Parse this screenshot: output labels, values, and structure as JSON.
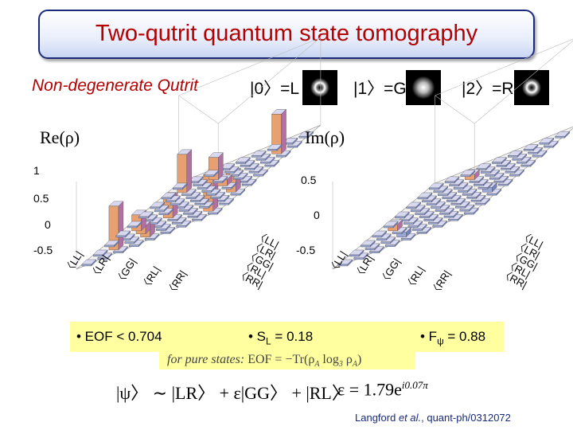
{
  "title": "Two-qutrit quantum state tomography",
  "subtitle": "Non-degenerate Qutrit",
  "modes": [
    {
      "ket": "|0〉=L"
    },
    {
      "ket": "|1〉=G"
    },
    {
      "ket": "|2〉=R"
    }
  ],
  "re_plot": {
    "label": "Re(ρ)",
    "ticks": [
      "1",
      "0.5",
      "0",
      "-0.5"
    ],
    "basis_right": [
      "LL",
      "LR",
      "GG",
      "RL",
      "RR"
    ],
    "basis_front": [
      "LL",
      "LR",
      "GG",
      "RL",
      "RR"
    ]
  },
  "im_plot": {
    "label": "Im(ρ)",
    "ticks": [
      "0.5",
      "0",
      "-0.5"
    ],
    "basis_right": [
      "LL",
      "LR",
      "GG",
      "RL",
      "RR"
    ],
    "basis_front": [
      "LL",
      "LR",
      "GG",
      "RL",
      "RR"
    ]
  },
  "results": {
    "eof_prefix": "• EOF < 0.704",
    "sl_prefix": "• S",
    "sl_sub": "L",
    "sl_value": " = 0.18",
    "fpsi_prefix": "• F",
    "fpsi_sub": "ψ",
    "fpsi_value": " = 0.88"
  },
  "pure_state": {
    "text": "for pure states:",
    "eof": "EOF = −Tr(ρ",
    "sub_a": "A",
    "log": " log",
    "sub_3": "3",
    "rho": " ρ",
    "sub_a2": "A",
    "close": ")"
  },
  "state_eq": "|ψ〉 ∼ |LR〉 + ε|GG〉 + |RL〉",
  "epsilon_eq": {
    "lhs": "ε = 1.79e",
    "exp": "i0.07π"
  },
  "citation": {
    "authors": "Langford ",
    "etal": "et al.",
    "ref": ", quant-ph/0312072"
  }
}
